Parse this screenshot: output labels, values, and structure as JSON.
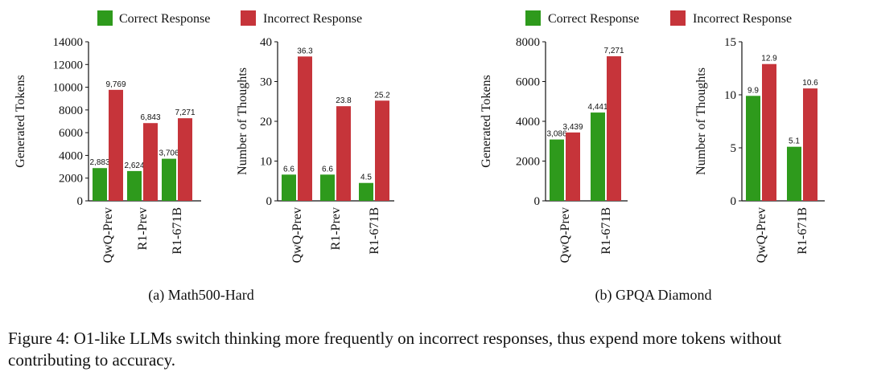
{
  "legend": {
    "correct_label": "Correct Response",
    "incorrect_label": "Incorrect Response",
    "correct_color": "#2e9a1c",
    "incorrect_color": "#c6343a"
  },
  "panels": [
    {
      "caption": "(a) Math500-Hard"
    },
    {
      "caption": "(b) GPQA Diamond"
    }
  ],
  "figure_caption": "Figure 4: O1-like LLMs switch thinking more frequently on incorrect responses, thus expend more tokens without contributing to accuracy.",
  "chart_data": [
    {
      "type": "bar",
      "panel": "(a) Math500-Hard",
      "categories": [
        "QwQ-Prev",
        "R1-Prev",
        "R1-671B"
      ],
      "ylabel": "Generated Tokens",
      "ylim": [
        0,
        14000
      ],
      "yticks": [
        "0",
        "2000",
        "4000",
        "6000",
        "8000",
        "10000",
        "12000",
        "14000"
      ],
      "series": [
        {
          "name": "Correct Response",
          "values": [
            2883,
            2624,
            3706
          ],
          "labels": [
            "2,883",
            "2,624",
            "3,706"
          ]
        },
        {
          "name": "Incorrect Response",
          "values": [
            9769,
            6843,
            7271
          ],
          "labels": [
            "9,769",
            "6,843",
            "7,271"
          ]
        }
      ]
    },
    {
      "type": "bar",
      "panel": "(a) Math500-Hard",
      "categories": [
        "QwQ-Prev",
        "R1-Prev",
        "R1-671B"
      ],
      "ylabel": "Number of Thoughts",
      "ylim": [
        0,
        40
      ],
      "yticks": [
        "0",
        "10",
        "20",
        "30",
        "40"
      ],
      "series": [
        {
          "name": "Correct Response",
          "values": [
            6.6,
            6.6,
            4.5
          ],
          "labels": [
            "6.6",
            "6.6",
            "4.5"
          ]
        },
        {
          "name": "Incorrect Response",
          "values": [
            36.3,
            23.8,
            25.2
          ],
          "labels": [
            "36.3",
            "23.8",
            "25.2"
          ]
        }
      ]
    },
    {
      "type": "bar",
      "panel": "(b) GPQA Diamond",
      "categories": [
        "QwQ-Prev",
        "R1-671B"
      ],
      "ylabel": "Generated Tokens",
      "ylim": [
        0,
        8000
      ],
      "yticks": [
        "0",
        "2000",
        "4000",
        "6000",
        "8000"
      ],
      "series": [
        {
          "name": "Correct Response",
          "values": [
            3086,
            4441
          ],
          "labels": [
            "3,086",
            "4,441"
          ]
        },
        {
          "name": "Incorrect Response",
          "values": [
            3439,
            7271
          ],
          "labels": [
            "3,439",
            "7,271"
          ]
        }
      ]
    },
    {
      "type": "bar",
      "panel": "(b) GPQA Diamond",
      "categories": [
        "QwQ-Prev",
        "R1-671B"
      ],
      "ylabel": "Number of Thoughts",
      "ylim": [
        0,
        15
      ],
      "yticks": [
        "0",
        "5",
        "10",
        "15"
      ],
      "series": [
        {
          "name": "Correct Response",
          "values": [
            9.9,
            5.1
          ],
          "labels": [
            "9.9",
            "5.1"
          ]
        },
        {
          "name": "Incorrect Response",
          "values": [
            12.9,
            10.6
          ],
          "labels": [
            "12.9",
            "10.6"
          ]
        }
      ]
    }
  ]
}
